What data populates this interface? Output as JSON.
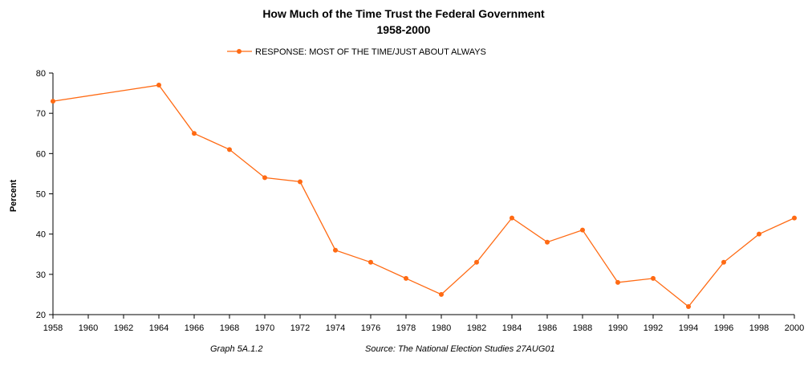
{
  "chart_data": {
    "type": "line",
    "title": "How Much of the Time Trust the Federal Government",
    "subtitle": "1958-2000",
    "xlabel": "",
    "ylabel": "Percent",
    "ylim": [
      20,
      80
    ],
    "yticks": [
      20,
      30,
      40,
      50,
      60,
      70,
      80
    ],
    "xlim": [
      1958,
      2000
    ],
    "xticks": [
      "1958",
      "1960",
      "1962",
      "1964",
      "1966",
      "1968",
      "1970",
      "1972",
      "1974",
      "1976",
      "1978",
      "1980",
      "1982",
      "1984",
      "1986",
      "1988",
      "1990",
      "1992",
      "1994",
      "1996",
      "1998",
      "2000"
    ],
    "grid": false,
    "legend_position": "top",
    "color": "#FF6A13",
    "series": [
      {
        "name": "RESPONSE: MOST OF THE TIME/JUST ABOUT ALWAYS",
        "x": [
          1958,
          1964,
          1966,
          1968,
          1970,
          1972,
          1974,
          1976,
          1978,
          1980,
          1982,
          1984,
          1986,
          1988,
          1990,
          1992,
          1994,
          1996,
          1998,
          2000
        ],
        "values": [
          73,
          77,
          65,
          61,
          54,
          53,
          36,
          33,
          29,
          25,
          33,
          44,
          38,
          41,
          28,
          29,
          22,
          33,
          40,
          44
        ]
      }
    ],
    "footer_left": "Graph 5A.1.2",
    "footer_right": "Source:  The National Election Studies  27AUG01"
  }
}
